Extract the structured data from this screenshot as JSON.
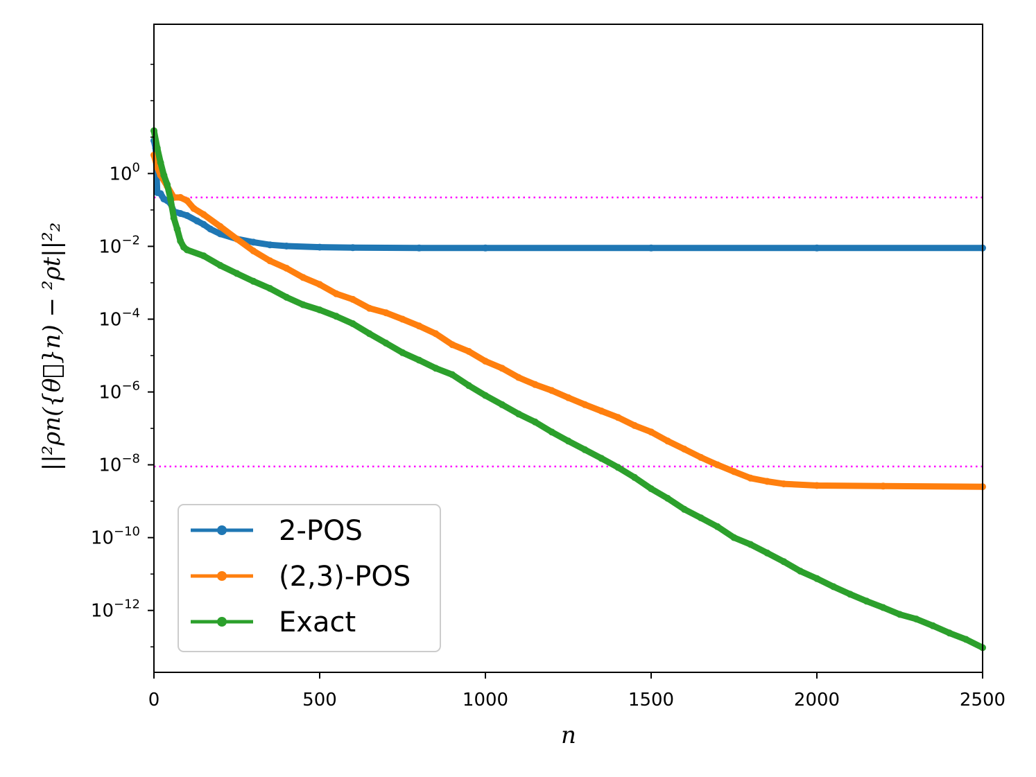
{
  "chart_data": {
    "type": "line",
    "xlabel": "n",
    "ylabel": "||²ρn({θ⃗}n) − ²ρt||²₂",
    "xscale": "linear",
    "yscale": "log",
    "xlim": [
      0,
      2500
    ],
    "ylim_log10": [
      -13.7,
      4.1
    ],
    "x_ticks": [
      0,
      500,
      1000,
      1500,
      2000,
      2500
    ],
    "x_tick_labels": [
      "0",
      "500",
      "1000",
      "1500",
      "2000",
      "2500"
    ],
    "y_ticks_log10": [
      0,
      -2,
      -4,
      -6,
      -8,
      -10,
      -12
    ],
    "y_tick_labels": [
      {
        "base": "10",
        "exp": "0"
      },
      {
        "base": "10",
        "exp": "−2"
      },
      {
        "base": "10",
        "exp": "−4"
      },
      {
        "base": "10",
        "exp": "−6"
      },
      {
        "base": "10",
        "exp": "−8"
      },
      {
        "base": "10",
        "exp": "−10"
      },
      {
        "base": "10",
        "exp": "−12"
      }
    ],
    "reference_lines": [
      {
        "y": 0.22,
        "color": "#ff00ff",
        "style": "dotted"
      },
      {
        "y": 9e-09,
        "color": "#ff00ff",
        "style": "dotted"
      }
    ],
    "legend_position": "lower-left",
    "grid": false,
    "series": [
      {
        "name": "2-POS",
        "color": "#1f77b4",
        "points": [
          [
            0,
            8
          ],
          [
            5,
            5
          ],
          [
            10,
            0.3
          ],
          [
            20,
            0.28
          ],
          [
            30,
            0.2
          ],
          [
            40,
            0.18
          ],
          [
            50,
            0.15
          ],
          [
            60,
            0.09
          ],
          [
            80,
            0.08
          ],
          [
            100,
            0.07
          ],
          [
            130,
            0.05
          ],
          [
            150,
            0.04
          ],
          [
            170,
            0.03
          ],
          [
            200,
            0.022
          ],
          [
            250,
            0.016
          ],
          [
            300,
            0.013
          ],
          [
            350,
            0.011
          ],
          [
            400,
            0.0102
          ],
          [
            500,
            0.0095
          ],
          [
            600,
            0.0092
          ],
          [
            800,
            0.009
          ],
          [
            1000,
            0.009
          ],
          [
            1500,
            0.009
          ],
          [
            2000,
            0.009
          ],
          [
            2500,
            0.009
          ]
        ]
      },
      {
        "name": "(2,3)-POS",
        "color": "#ff7f0e",
        "points": [
          [
            0,
            3.2
          ],
          [
            10,
            1.5
          ],
          [
            20,
            0.9
          ],
          [
            40,
            0.45
          ],
          [
            60,
            0.22
          ],
          [
            80,
            0.22
          ],
          [
            100,
            0.18
          ],
          [
            120,
            0.11
          ],
          [
            150,
            0.075
          ],
          [
            200,
            0.035
          ],
          [
            250,
            0.016
          ],
          [
            300,
            0.0075
          ],
          [
            350,
            0.004
          ],
          [
            400,
            0.0025
          ],
          [
            450,
            0.0014
          ],
          [
            500,
            0.0009
          ],
          [
            550,
            0.0005
          ],
          [
            600,
            0.00035
          ],
          [
            650,
            0.0002
          ],
          [
            700,
            0.00015
          ],
          [
            750,
            0.0001
          ],
          [
            800,
            6.5e-05
          ],
          [
            850,
            4e-05
          ],
          [
            900,
            2e-05
          ],
          [
            950,
            1.3e-05
          ],
          [
            1000,
            7e-06
          ],
          [
            1050,
            4.5e-06
          ],
          [
            1100,
            2.5e-06
          ],
          [
            1150,
            1.6e-06
          ],
          [
            1200,
            1.1e-06
          ],
          [
            1250,
            7e-07
          ],
          [
            1300,
            4.5e-07
          ],
          [
            1350,
            3e-07
          ],
          [
            1400,
            2e-07
          ],
          [
            1450,
            1.2e-07
          ],
          [
            1500,
            8e-08
          ],
          [
            1550,
            4.5e-08
          ],
          [
            1600,
            2.7e-08
          ],
          [
            1650,
            1.6e-08
          ],
          [
            1700,
            1e-08
          ],
          [
            1750,
            6.5e-09
          ],
          [
            1800,
            4.3e-09
          ],
          [
            1850,
            3.5e-09
          ],
          [
            1900,
            3e-09
          ],
          [
            2000,
            2.7e-09
          ],
          [
            2200,
            2.6e-09
          ],
          [
            2500,
            2.5e-09
          ]
        ]
      },
      {
        "name": "Exact",
        "color": "#2ca02c",
        "points": [
          [
            0,
            15
          ],
          [
            10,
            5
          ],
          [
            20,
            2
          ],
          [
            30,
            0.9
          ],
          [
            40,
            0.5
          ],
          [
            50,
            0.2
          ],
          [
            60,
            0.06
          ],
          [
            70,
            0.03
          ],
          [
            80,
            0.014
          ],
          [
            90,
            0.0095
          ],
          [
            100,
            0.008
          ],
          [
            150,
            0.0055
          ],
          [
            200,
            0.003
          ],
          [
            250,
            0.0018
          ],
          [
            300,
            0.0011
          ],
          [
            350,
            0.0007
          ],
          [
            400,
            0.0004
          ],
          [
            450,
            0.00025
          ],
          [
            500,
            0.00018
          ],
          [
            550,
            0.00012
          ],
          [
            600,
            7.5e-05
          ],
          [
            650,
            4e-05
          ],
          [
            700,
            2.2e-05
          ],
          [
            750,
            1.2e-05
          ],
          [
            800,
            7.5e-06
          ],
          [
            850,
            4.5e-06
          ],
          [
            900,
            3e-06
          ],
          [
            950,
            1.5e-06
          ],
          [
            1000,
            8e-07
          ],
          [
            1050,
            4.5e-07
          ],
          [
            1100,
            2.5e-07
          ],
          [
            1150,
            1.5e-07
          ],
          [
            1200,
            8e-08
          ],
          [
            1250,
            4.5e-08
          ],
          [
            1300,
            2.6e-08
          ],
          [
            1350,
            1.5e-08
          ],
          [
            1400,
            8.5e-09
          ],
          [
            1450,
            4.5e-09
          ],
          [
            1500,
            2.2e-09
          ],
          [
            1550,
            1.2e-09
          ],
          [
            1600,
            6e-10
          ],
          [
            1650,
            3.5e-10
          ],
          [
            1700,
            2e-10
          ],
          [
            1750,
            1e-10
          ],
          [
            1800,
            6.5e-11
          ],
          [
            1850,
            3.8e-11
          ],
          [
            1900,
            2.2e-11
          ],
          [
            1950,
            1.2e-11
          ],
          [
            2000,
            7.5e-12
          ],
          [
            2050,
            4.5e-12
          ],
          [
            2100,
            2.8e-12
          ],
          [
            2150,
            1.8e-12
          ],
          [
            2200,
            1.2e-12
          ],
          [
            2250,
            7.8e-13
          ],
          [
            2300,
            5.8e-13
          ],
          [
            2350,
            3.8e-13
          ],
          [
            2400,
            2.4e-13
          ],
          [
            2450,
            1.6e-13
          ],
          [
            2500,
            9.5e-14
          ]
        ]
      }
    ]
  }
}
